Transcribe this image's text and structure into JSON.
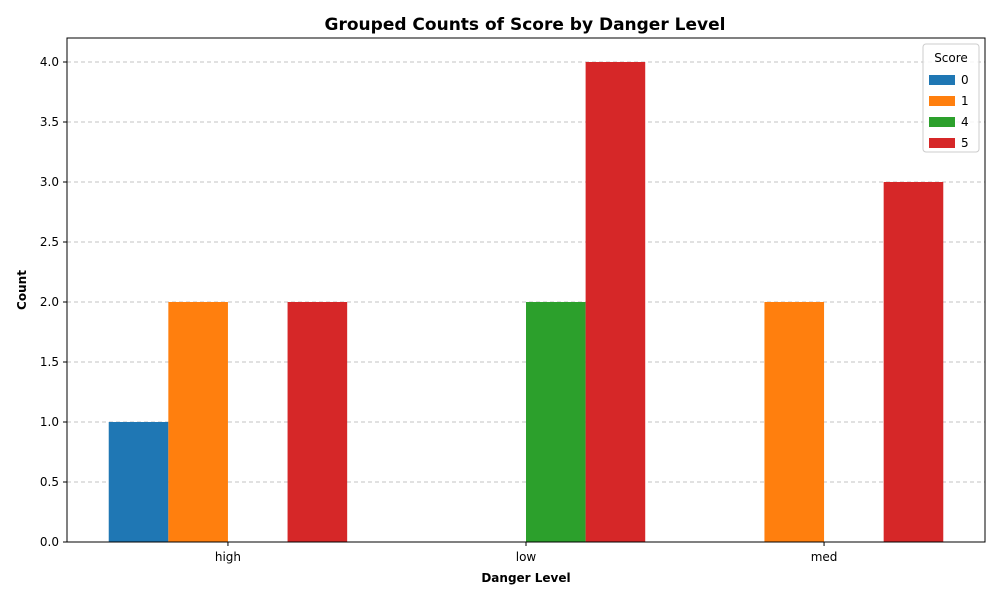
{
  "chart_data": {
    "type": "bar",
    "title": "Grouped Counts of Score by Danger Level",
    "xlabel": "Danger Level",
    "ylabel": "Count",
    "categories": [
      "high",
      "low",
      "med"
    ],
    "series": [
      {
        "name": "0",
        "values": [
          1,
          0,
          0
        ],
        "color": "#1f77b4"
      },
      {
        "name": "1",
        "values": [
          2,
          0,
          2
        ],
        "color": "#ff7f0e"
      },
      {
        "name": "4",
        "values": [
          0,
          2,
          0
        ],
        "color": "#2ca02c"
      },
      {
        "name": "5",
        "values": [
          2,
          4,
          3
        ],
        "color": "#d62728"
      }
    ],
    "ylim": [
      0,
      4.2
    ],
    "yticks": [
      0.0,
      0.5,
      1.0,
      1.5,
      2.0,
      2.5,
      3.0,
      3.5,
      4.0
    ],
    "ytick_labels": [
      "0.0",
      "0.5",
      "1.0",
      "1.5",
      "2.0",
      "2.5",
      "3.0",
      "3.5",
      "4.0"
    ],
    "grid": "y-dashed",
    "legend": {
      "title": "Score",
      "placement": "top-right"
    }
  }
}
